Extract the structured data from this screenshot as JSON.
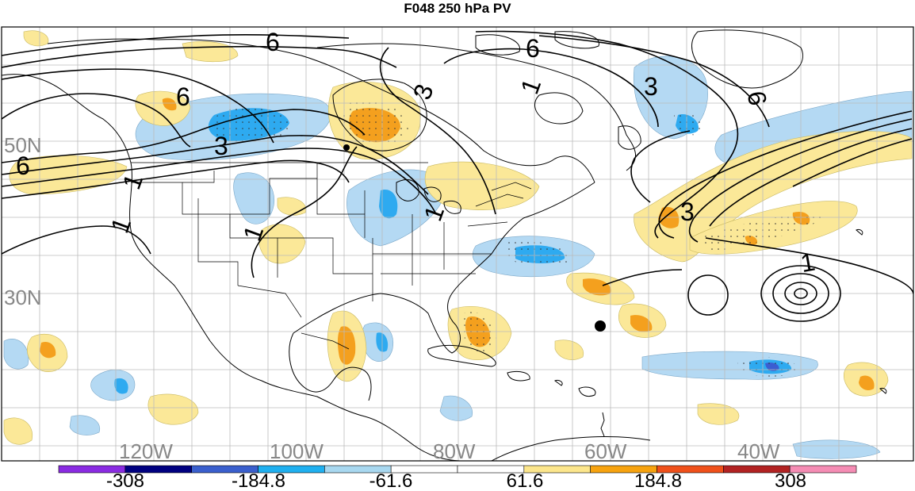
{
  "title": "F048 250 hPa PV",
  "lat_labels": [
    "50N",
    "30N"
  ],
  "lon_labels": [
    "120W",
    "100W",
    "80W",
    "60W",
    "40W"
  ],
  "contour_labels": [
    "6",
    "6",
    "6",
    "6",
    "6",
    "3",
    "3",
    "3",
    "3",
    "1",
    "1",
    "1",
    "1",
    "1",
    "1"
  ],
  "colorbar": {
    "colors": [
      "#8a2be2",
      "#000080",
      "#3a5fcd",
      "#1fb0f0",
      "#a8d8f0",
      "#ffffff",
      "#ffffff",
      "#fce68c",
      "#f7a30f",
      "#f0501a",
      "#b22222",
      "#f58cb4"
    ],
    "labels": [
      "-308",
      "-184.8",
      "-61.6",
      "61.6",
      "184.8",
      "308"
    ]
  },
  "colors": {
    "light_blue": "#b4d9f3",
    "mid_blue": "#2eaaf0",
    "dark_blue": "#3b5ed1",
    "light_yellow": "#fbe898",
    "orange": "#f4a01e",
    "grid": "#bbbbbb",
    "label_gray": "#888888"
  }
}
